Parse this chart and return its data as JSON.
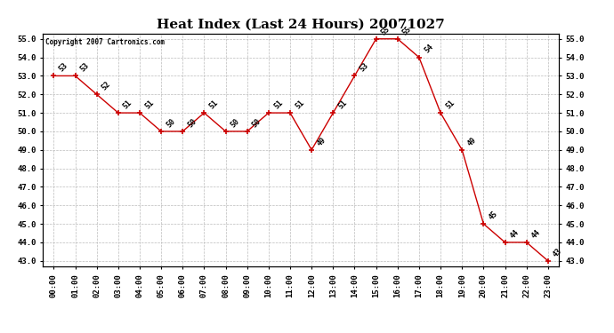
{
  "title": "Heat Index (Last 24 Hours) 20071027",
  "copyright": "Copyright 2007 Cartronics.com",
  "hours": [
    "00:00",
    "01:00",
    "02:00",
    "03:00",
    "04:00",
    "05:00",
    "06:00",
    "07:00",
    "08:00",
    "09:00",
    "10:00",
    "11:00",
    "12:00",
    "13:00",
    "14:00",
    "15:00",
    "16:00",
    "17:00",
    "18:00",
    "19:00",
    "20:00",
    "21:00",
    "22:00",
    "23:00"
  ],
  "values": [
    53,
    53,
    52,
    51,
    51,
    50,
    50,
    51,
    50,
    50,
    51,
    51,
    49,
    51,
    53,
    55,
    55,
    54,
    51,
    49,
    45,
    44,
    44,
    43
  ],
  "line_color": "#cc0000",
  "marker_color": "#cc0000",
  "bg_color": "#ffffff",
  "grid_color": "#bbbbbb",
  "ylim_min": 43.0,
  "ylim_max": 55.0,
  "title_fontsize": 11,
  "label_fontsize": 6.5,
  "annotation_fontsize": 6,
  "copyright_fontsize": 5.5
}
